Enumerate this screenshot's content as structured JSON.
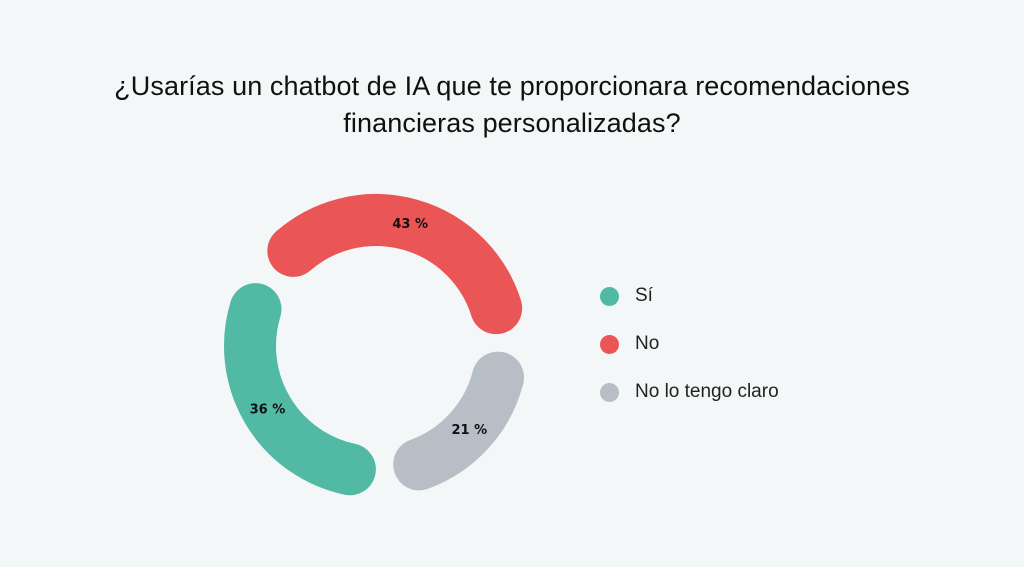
{
  "chart_data": {
    "type": "pie",
    "title_lines": [
      "¿Usarías un chatbot de IA que te proporcionara recomendaciones",
      "financieras personalizadas?"
    ],
    "categories": [
      "Sí",
      "No",
      "No lo tengo claro"
    ],
    "values": [
      36,
      43,
      21
    ],
    "value_labels": [
      "36 %",
      "43 %",
      "21 %"
    ],
    "colors": [
      "#52b9a5",
      "#ea5556",
      "#b8bec5"
    ],
    "style": "donut",
    "legend_position": "right"
  }
}
